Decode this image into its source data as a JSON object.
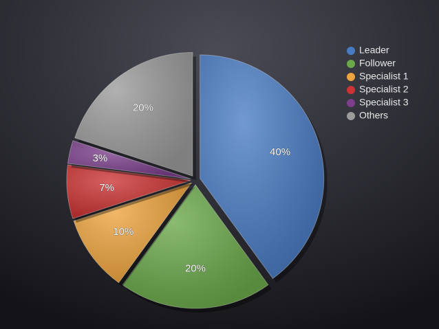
{
  "chart_data": {
    "type": "pie",
    "categories": [
      "Leader",
      "Follower",
      "Specialist 1",
      "Specialist 2",
      "Specialist 3",
      "Others"
    ],
    "values": [
      40,
      20,
      10,
      7,
      3,
      20
    ],
    "value_labels": [
      "40%",
      "20%",
      "10%",
      "7%",
      "3%",
      "20%"
    ],
    "colors": [
      "#4a7cc4",
      "#6aa84a",
      "#eea43e",
      "#cc3333",
      "#7c3f8c",
      "#9b9b9b"
    ],
    "legend": "top-right"
  }
}
